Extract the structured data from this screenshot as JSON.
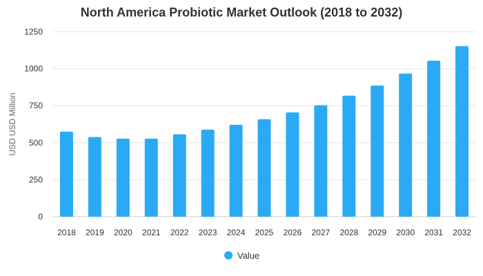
{
  "chart_data": {
    "type": "bar",
    "title": "North America Probiotic Market Outlook (2018 to 2032)",
    "xlabel": "",
    "ylabel": "USD USD Million",
    "categories": [
      "2018",
      "2019",
      "2020",
      "2021",
      "2022",
      "2023",
      "2024",
      "2025",
      "2026",
      "2027",
      "2028",
      "2029",
      "2030",
      "2031",
      "2032"
    ],
    "series": [
      {
        "name": "Value",
        "values": [
          575,
          538,
          527,
          527,
          557,
          588,
          621,
          659,
          705,
          753,
          818,
          886,
          967,
          1054,
          1153
        ]
      }
    ],
    "ylim": [
      0,
      1250
    ],
    "yticks": [
      0,
      250,
      500,
      750,
      1000,
      1250
    ],
    "grid": true,
    "legend_position": "bottom-center",
    "colors": {
      "bar": "#2aaaf5",
      "grid": "#e6e6e6",
      "text": "#333333"
    }
  }
}
